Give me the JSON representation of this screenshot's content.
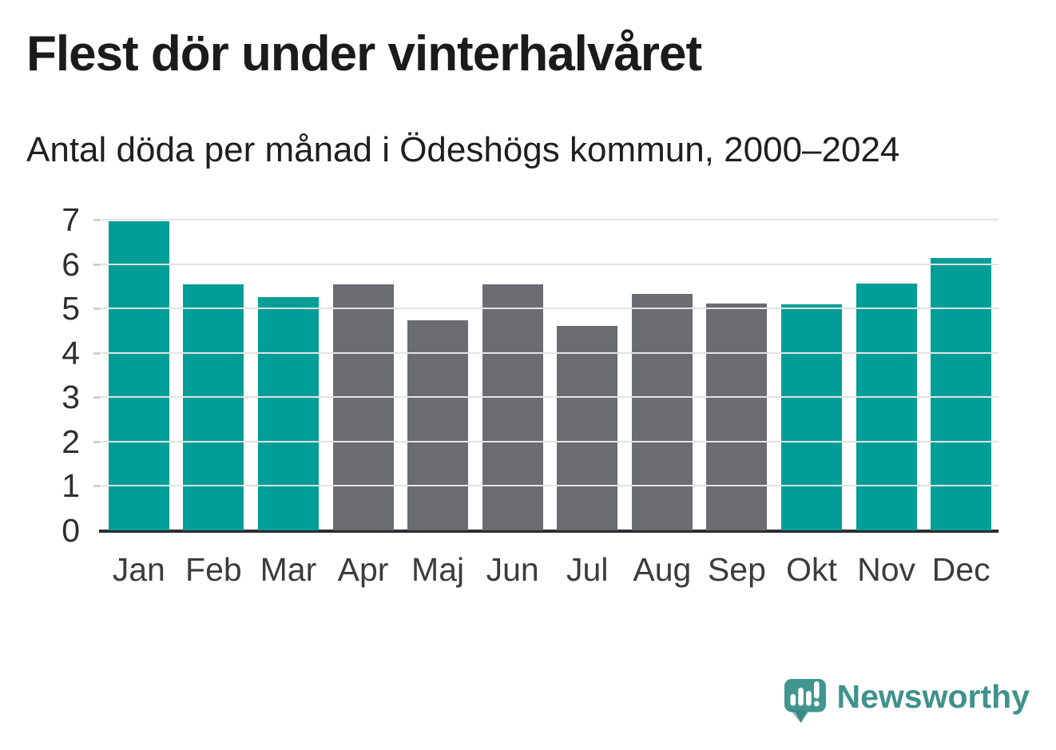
{
  "header": {
    "title": "Flest dör under vinterhalvåret",
    "subtitle": "Antal döda per månad i Ödeshögs kommun, 2000–2024"
  },
  "chart_data": {
    "type": "bar",
    "title": "Flest dör under vinterhalvåret",
    "subtitle": "Antal döda per månad i Ödeshögs kommun, 2000–2024",
    "categories": [
      "Jan",
      "Feb",
      "Mar",
      "Apr",
      "Maj",
      "Jun",
      "Jul",
      "Aug",
      "Sep",
      "Okt",
      "Nov",
      "Dec"
    ],
    "values": [
      6.97,
      5.55,
      5.26,
      5.55,
      4.74,
      5.55,
      4.61,
      5.33,
      5.11,
      5.1,
      5.56,
      6.14
    ],
    "bar_colors": [
      "#009e96",
      "#009e96",
      "#009e96",
      "#6b6b72",
      "#6b6b72",
      "#6b6b72",
      "#6b6b72",
      "#6b6b72",
      "#6b6b72",
      "#009e96",
      "#009e96",
      "#009e96"
    ],
    "highlight_color": "#009e96",
    "muted_color": "#6b6b72",
    "xlabel": "",
    "ylabel": "",
    "ylim": [
      0,
      7
    ],
    "yticks": [
      0,
      1,
      2,
      3,
      4,
      5,
      6,
      7
    ],
    "grid": "horizontal",
    "gridline_color": "#e3e3e3",
    "axis_color": "#2d2d2d",
    "legend": "none"
  },
  "branding": {
    "logo_text": "Newsworthy",
    "logo_color": "#3f928c"
  }
}
